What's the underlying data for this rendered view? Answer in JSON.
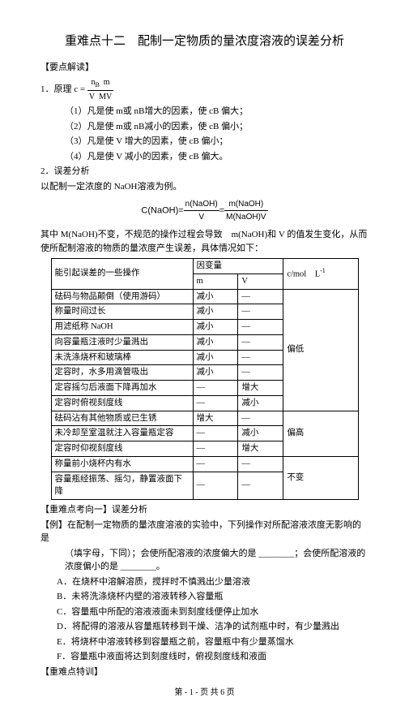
{
  "title": "重难点十二　配制一定物质的量浓度溶液的误差分析",
  "s1": "【要点解读】",
  "p1_label": "1．原理 c =",
  "frac1_num": "n<sub>B</sub>　m",
  "frac1_den": "V　MV",
  "r1": "（1）凡是使 m或 nB增大的因素，使 cB 偏大；",
  "r2": "（2）凡是使 m或 nB减小的因素，使 cB 偏小；",
  "r3": "（3）凡是使 V 增大的因素，使  cB 偏小；",
  "r4": "（4）凡是使 V 减小的因素，使  cB 偏大。",
  "p2": "2．误差分析",
  "p2b": "以配制一定浓度的  NaOH溶液为例。",
  "f2_left": "C(NaOH)=",
  "f2_n1": "n(NaOH)",
  "f2_d1": "V",
  "f2_eq": "=",
  "f2_n2": "m(NaOH)",
  "f2_d2": "M(NaOH)V",
  "desc": "其中 M(NaOH)不变，不规范的操作过程会导致　m(NaOH)和 V 的值发生变化，从而使所配制溶液的物质的量浓度产生误差，具体情况如下：",
  "th1": "能引起误差的一些操作",
  "th2": "因变量",
  "th3": "c/mol    L<span class=\"sup\">-1</span>",
  "th2a": "m",
  "th2b": "V",
  "rows": [
    [
      "砝码与物品颠倒（使用游码）",
      "减小",
      "—",
      "偏低"
    ],
    [
      "称量时间过长",
      "减小",
      "—",
      ""
    ],
    [
      "用滤纸称 NaOH",
      "减小",
      "—",
      ""
    ],
    [
      "向容量瓶注液时少量溅出",
      "减小",
      "—",
      ""
    ],
    [
      "未洗涤烧杯和玻璃棒",
      "减小",
      "—",
      ""
    ],
    [
      "定容时，水多用滴管吸出",
      "减小",
      "—",
      ""
    ],
    [
      "定容摇匀后液面下降再加水",
      "—",
      "增大",
      ""
    ],
    [
      "定容时俯视刻度线",
      "—",
      "减小",
      ""
    ],
    [
      "砝码沾有其他物质或已生锈",
      "增大",
      "—",
      "偏高"
    ],
    [
      "未冷却至室温就注入容量瓶定容",
      "—",
      "减小",
      ""
    ],
    [
      "定容时仰视刻度线",
      "—",
      "增大",
      ""
    ],
    [
      "称量前小烧杯内有水",
      "—",
      "—",
      "不变"
    ],
    [
      "容量瓶经振荡、摇匀，静置液面下降",
      "—",
      "—",
      ""
    ]
  ],
  "s2": "【重难点考向一】误差分析",
  "ex_label": "【例】",
  "ex_text1": "在配制一定物质的量浓度溶液的实验中，下列操作对所配溶液浓度无影响的是",
  "ex_text2": "（填字母，下同）；会使所配溶液的浓度偏大的是 ________；会使所配溶液的浓度偏小的是 ________。",
  "optA": "A．在烧杯中溶解溶质，搅拌时不慎溅出少量溶液",
  "optB": "B．未将洗涤烧杯内壁的溶液转移入容量瓶",
  "optC": "C．容量瓶中所配的溶液液面未到刻度线便停止加水",
  "optD": "D．将配得的溶液从容量瓶转移到干燥、洁净的试剂瓶中时，有少量溅出",
  "optE": "E．将烧杯中溶液转移到容量瓶之前，容量瓶中有少量蒸馏水",
  "optF": "F．容量瓶中液面将达到刻度线时，俯视刻度线和液面",
  "s3": "【重难点特训】",
  "footer": "第 - 1 - 页 共 6 页"
}
